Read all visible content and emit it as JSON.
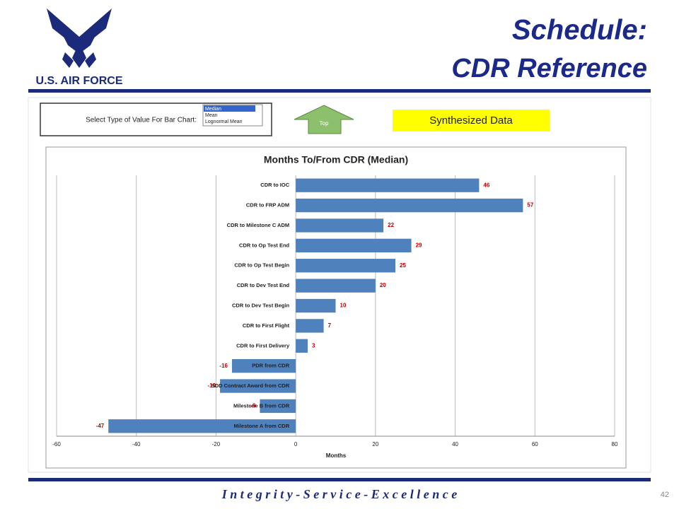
{
  "slide": {
    "title_line1": "Schedule:",
    "title_line2": "CDR Reference",
    "logo_text": "U.S. AIR FORCE",
    "selector_label": "Select Type of Value For Bar Chart:",
    "selector_options": [
      "Median",
      "Mean",
      "Lognormal Mean"
    ],
    "top_button": "Top",
    "badge": "Synthesized Data",
    "footer": "I n t e g r i t y - S e r v i c e - E x c e l l e n c e",
    "page_number": "42"
  },
  "chart_data": {
    "type": "hbar",
    "title": "Months To/From CDR (Median)",
    "x_label": "Months",
    "categories": [
      "CDR to IOC",
      "CDR to FRP ADM",
      "CDR to Milestone C ADM",
      "CDR to Op Test End",
      "CDR to Op Test Begin",
      "CDR to Dev Test End",
      "CDR to Dev Test Begin",
      "CDR to First Flight",
      "CDR to First Delivery",
      "PDR from CDR",
      "SDD Contract Award from CDR",
      "Milestone B from CDR",
      "Milestone A  from CDR"
    ],
    "values": [
      46,
      57,
      22,
      29,
      25,
      20,
      10,
      7,
      3,
      -16,
      -19,
      -9,
      -47
    ],
    "color": "#4f81bd",
    "label_color": "#c00000",
    "xlim": [
      -60,
      80
    ],
    "xticks": [
      -60,
      -40,
      -20,
      0,
      20,
      40,
      60,
      80
    ],
    "grid": true
  }
}
